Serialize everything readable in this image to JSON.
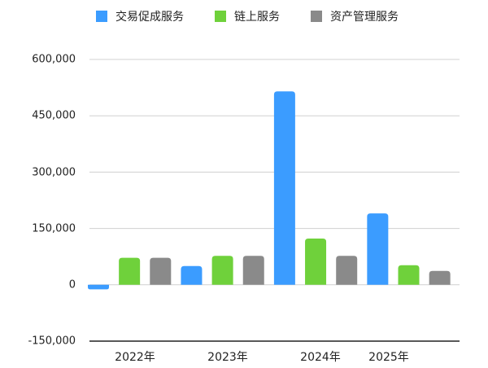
{
  "chart_data": {
    "type": "bar",
    "title": "",
    "xlabel": "",
    "ylabel": "",
    "ylim": [
      -150000,
      600000
    ],
    "yticks": [
      600000,
      450000,
      300000,
      150000,
      0,
      -150000
    ],
    "ytick_labels": [
      "600,000",
      "450,000",
      "300,000",
      "150,000",
      "0",
      "-150,000"
    ],
    "grid": true,
    "legend": "top",
    "categories": [
      "2022年",
      "2023年",
      "2024年",
      "2025年"
    ],
    "series": [
      {
        "name": "交易促成服务",
        "color": "#3b9cff",
        "values": [
          -12000,
          50000,
          515000,
          190000
        ]
      },
      {
        "name": "链上服务",
        "color": "#6fd13b",
        "values": [
          72000,
          77000,
          123000,
          52000
        ]
      },
      {
        "name": "资产管理服务",
        "color": "#8a8a8a",
        "values": [
          72000,
          77000,
          77000,
          37000
        ]
      }
    ]
  }
}
